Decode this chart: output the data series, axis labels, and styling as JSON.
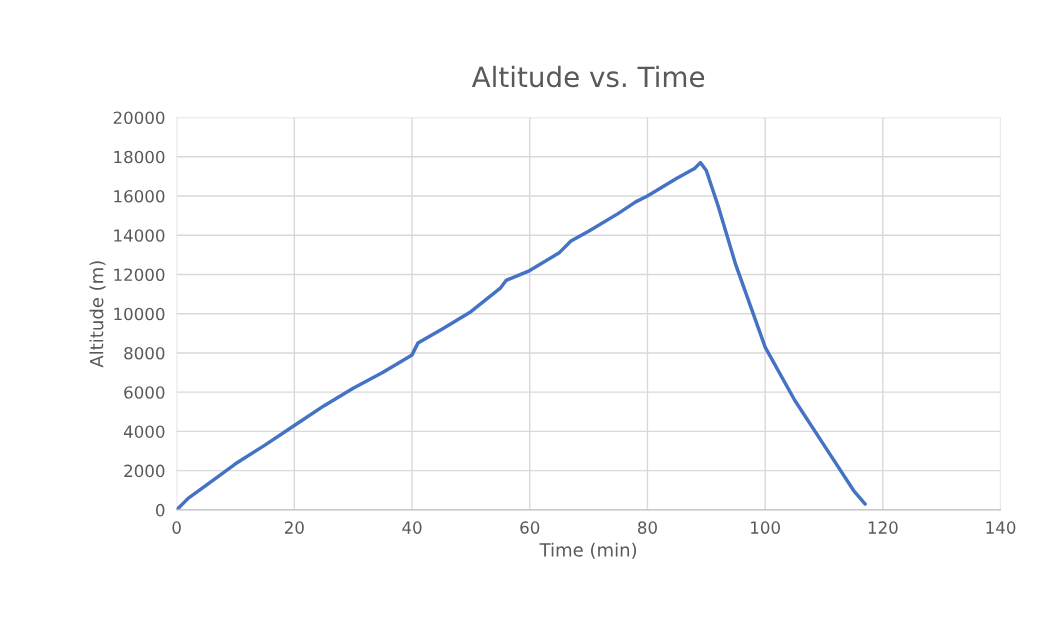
{
  "chart_data": {
    "type": "line",
    "title": "Altitude vs. Time",
    "xlabel": "Time (min)",
    "ylabel": "Altitude (m)",
    "x": [
      0,
      2,
      5,
      10,
      15,
      20,
      25,
      30,
      35,
      40,
      41,
      45,
      50,
      55,
      56,
      60,
      65,
      67,
      70,
      75,
      78,
      80,
      85,
      88,
      89,
      90,
      92,
      95,
      100,
      105,
      110,
      115,
      117
    ],
    "series": [
      {
        "color": "#4472c4",
        "values": [
          0,
          600,
          1250,
          2350,
          3300,
          4300,
          5300,
          6200,
          7000,
          7900,
          8500,
          9200,
          10100,
          11300,
          11700,
          12200,
          13100,
          13700,
          14200,
          15100,
          15700,
          16000,
          16900,
          17400,
          17700,
          17300,
          15500,
          12500,
          8300,
          5600,
          3300,
          1000,
          300
        ]
      }
    ],
    "xlim": [
      0,
      140
    ],
    "xticks": [
      0,
      20,
      40,
      60,
      80,
      100,
      120,
      140
    ],
    "ylim": [
      0,
      20000
    ],
    "yticks": [
      0,
      2000,
      4000,
      6000,
      8000,
      10000,
      12000,
      14000,
      16000,
      18000,
      20000
    ],
    "grid": true,
    "marker": "none",
    "line_style": "solid"
  }
}
